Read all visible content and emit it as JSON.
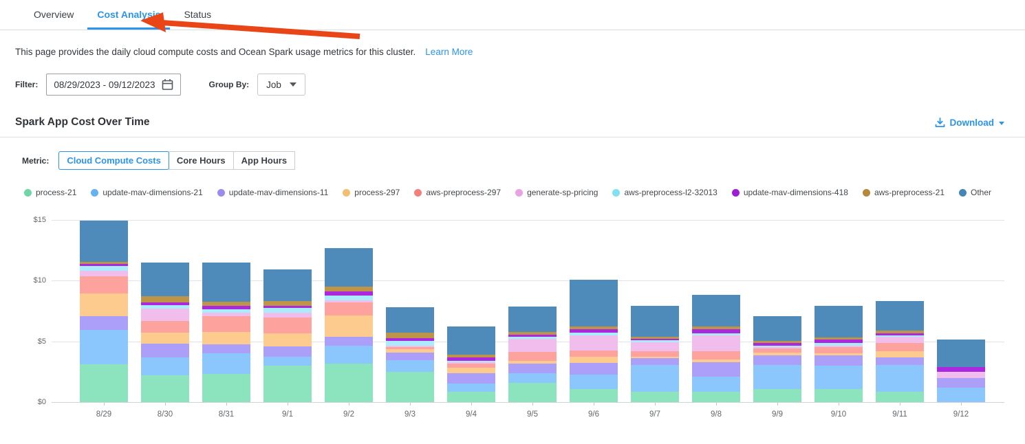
{
  "tabs": [
    {
      "label": "Overview",
      "active": false
    },
    {
      "label": "Cost Analysis",
      "active": true
    },
    {
      "label": "Status",
      "active": false
    }
  ],
  "description": {
    "text": "This page provides the daily cloud compute costs and Ocean Spark usage metrics for this cluster.",
    "link_label": "Learn More"
  },
  "filters": {
    "filter_label": "Filter:",
    "date_range": "08/29/2023  -  09/12/2023",
    "group_by_label": "Group By:",
    "group_by_value": "Job"
  },
  "section": {
    "title": "Spark App Cost Over Time",
    "download_label": "Download"
  },
  "metric": {
    "label": "Metric:",
    "options": [
      "Cloud Compute Costs",
      "Core Hours",
      "App Hours"
    ],
    "selected": "Cloud Compute Costs"
  },
  "colors": {
    "accent_blue": "#2b94ec",
    "annotation_arrow_red": "#ea4517"
  },
  "chart_data": {
    "type": "bar",
    "stacked": true,
    "title": "Spark App Cost Over Time",
    "unit": "USD",
    "grid": "horizontal",
    "legend_position": "top",
    "ylim": [
      0,
      15.6
    ],
    "y_ticks": [
      {
        "label": "$0",
        "value": 0
      },
      {
        "label": "$5",
        "value": 5
      },
      {
        "label": "$10",
        "value": 10
      },
      {
        "label": "$15",
        "value": 15
      }
    ],
    "categories": [
      "8/29",
      "8/30",
      "8/31",
      "9/1",
      "9/2",
      "9/3",
      "9/4",
      "9/5",
      "9/6",
      "9/7",
      "9/8",
      "9/9",
      "9/10",
      "9/11",
      "9/12"
    ],
    "series": [
      {
        "name": "process-21",
        "dot_color": "#71d6a5",
        "bar_color": "#8be4be",
        "values": [
          3.1,
          2.2,
          2.3,
          3.0,
          3.15,
          2.5,
          0.85,
          1.6,
          1.1,
          0.85,
          0.85,
          1.05,
          1.05,
          0.85,
          0
        ]
      },
      {
        "name": "update-mav-dimensions-21",
        "dot_color": "#66b2f0",
        "bar_color": "#8bc7fd",
        "values": [
          2.85,
          1.45,
          1.7,
          0.75,
          1.5,
          0.95,
          0.65,
          0.8,
          1.15,
          2.2,
          1.25,
          2.0,
          1.95,
          2.2,
          1.2
        ]
      },
      {
        "name": "update-mav-dimensions-11",
        "dot_color": "#9a8bef",
        "bar_color": "#ac9ff9",
        "values": [
          1.1,
          1.15,
          0.75,
          0.85,
          0.75,
          0.65,
          0.9,
          0.75,
          0.95,
          0.55,
          1.2,
          0.8,
          0.85,
          0.65,
          0.8
        ]
      },
      {
        "name": "process-297",
        "dot_color": "#f2be71",
        "bar_color": "#fccb8d",
        "values": [
          1.9,
          0.9,
          1.0,
          1.05,
          1.75,
          0.25,
          0.4,
          0.25,
          0.55,
          0.15,
          0.2,
          0.2,
          0.15,
          0.5,
          0
        ]
      },
      {
        "name": "aws-preprocess-297",
        "dot_color": "#f4807e",
        "bar_color": "#fea29e",
        "values": [
          1.4,
          0.95,
          1.35,
          1.3,
          1.05,
          0.2,
          0.35,
          0.75,
          0.5,
          0.45,
          0.7,
          0.35,
          0.55,
          0.65,
          0
        ]
      },
      {
        "name": "generate-sp-pricing",
        "dot_color": "#e9a2e2",
        "bar_color": "#f0bdec",
        "values": [
          0.45,
          1.05,
          0.25,
          0.4,
          0.15,
          0.1,
          0.15,
          1.05,
          1.25,
          0.75,
          1.3,
          0.15,
          0.1,
          0.5,
          0.5
        ]
      },
      {
        "name": "aws-preprocess-l2-32013",
        "dot_color": "#80e2f0",
        "bar_color": "#a9ecfb",
        "values": [
          0.4,
          0.3,
          0.3,
          0.4,
          0.45,
          0.4,
          0.1,
          0.15,
          0.2,
          0.15,
          0.15,
          0.1,
          0.2,
          0.15,
          0
        ]
      },
      {
        "name": "update-mav-dimensions-418",
        "dot_color": "#9e1fd3",
        "bar_color": "#ab28de",
        "values": [
          0.15,
          0.2,
          0.3,
          0.15,
          0.3,
          0.2,
          0.3,
          0.2,
          0.3,
          0.1,
          0.35,
          0.2,
          0.3,
          0.15,
          0.4
        ]
      },
      {
        "name": "aws-preprocess-21",
        "dot_color": "#b5893b",
        "bar_color": "#bd9448",
        "values": [
          0.2,
          0.5,
          0.3,
          0.4,
          0.4,
          0.45,
          0.2,
          0.25,
          0.2,
          0.2,
          0.2,
          0.2,
          0.15,
          0.25,
          0
        ]
      },
      {
        "name": "Other",
        "dot_color": "#4486b5",
        "bar_color": "#4e8aba",
        "values": [
          3.4,
          2.8,
          3.25,
          2.65,
          3.2,
          2.1,
          2.3,
          2.05,
          3.85,
          2.5,
          2.65,
          2.05,
          2.6,
          2.4,
          2.25
        ]
      }
    ]
  }
}
